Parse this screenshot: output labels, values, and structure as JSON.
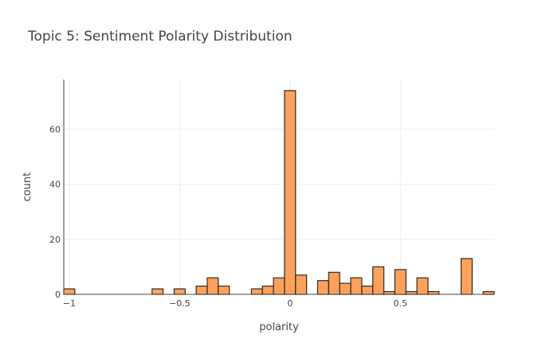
{
  "chart_data": {
    "type": "bar",
    "title": "Topic 5: Sentiment Polarity Distribution",
    "xlabel": "polarity",
    "ylabel": "count",
    "xlim": [
      -1.025,
      0.925
    ],
    "ylim": [
      0,
      78
    ],
    "x_ticks": [
      {
        "value": -1,
        "label": "−1"
      },
      {
        "value": -0.5,
        "label": "−0.5"
      },
      {
        "value": 0,
        "label": "0"
      },
      {
        "value": 0.5,
        "label": "0.5"
      }
    ],
    "y_ticks": [
      {
        "value": 0,
        "label": "0"
      },
      {
        "value": 20,
        "label": "20"
      },
      {
        "value": 40,
        "label": "40"
      },
      {
        "value": 60,
        "label": "60"
      }
    ],
    "grid": true,
    "bin_width": 0.05,
    "bins": [
      {
        "start": -1.025,
        "count": 2
      },
      {
        "start": -0.625,
        "count": 2
      },
      {
        "start": -0.525,
        "count": 2
      },
      {
        "start": -0.425,
        "count": 3
      },
      {
        "start": -0.375,
        "count": 6
      },
      {
        "start": -0.325,
        "count": 3
      },
      {
        "start": -0.175,
        "count": 2
      },
      {
        "start": -0.125,
        "count": 3
      },
      {
        "start": -0.075,
        "count": 6
      },
      {
        "start": -0.025,
        "count": 74
      },
      {
        "start": 0.025,
        "count": 7
      },
      {
        "start": 0.125,
        "count": 5
      },
      {
        "start": 0.175,
        "count": 8
      },
      {
        "start": 0.225,
        "count": 4
      },
      {
        "start": 0.275,
        "count": 6
      },
      {
        "start": 0.325,
        "count": 3
      },
      {
        "start": 0.375,
        "count": 10
      },
      {
        "start": 0.425,
        "count": 1
      },
      {
        "start": 0.475,
        "count": 9
      },
      {
        "start": 0.525,
        "count": 1
      },
      {
        "start": 0.575,
        "count": 6
      },
      {
        "start": 0.625,
        "count": 1
      },
      {
        "start": 0.775,
        "count": 13
      },
      {
        "start": 0.875,
        "count": 1
      }
    ],
    "colors": {
      "bar_fill": "#ffa15a",
      "bar_stroke": "#2a2a2a",
      "grid": "#eeeeee",
      "text": "#444444"
    }
  }
}
